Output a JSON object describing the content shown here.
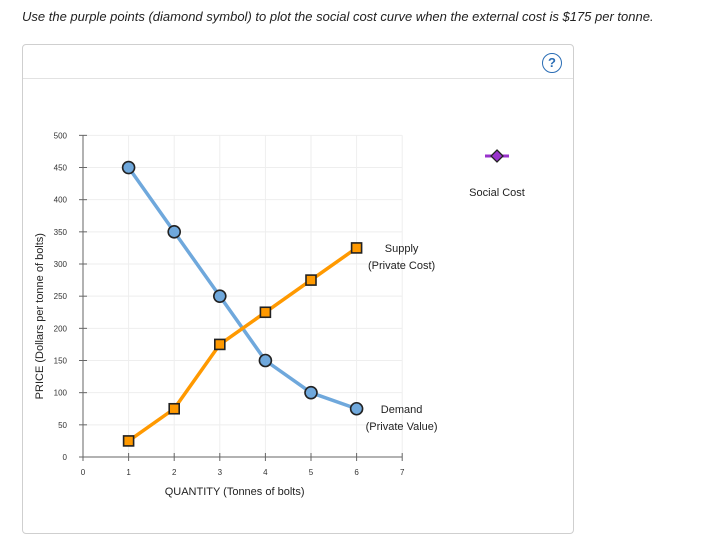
{
  "instruction": "Use the purple points (diamond symbol) to plot the social cost curve when the external cost is $175 per tonne.",
  "help_label": "?",
  "colors": {
    "demand": "#6fa8dc",
    "supply": "#ff9900",
    "social": "#9933cc",
    "marker_fill_demand": "#6fa8dc",
    "marker_fill_supply": "#ff9900"
  },
  "chart_data": {
    "type": "line",
    "xlabel": "QUANTITY (Tonnes of bolts)",
    "ylabel": "PRICE (Dollars per tonne of bolts)",
    "xlim": [
      0,
      7
    ],
    "ylim": [
      0,
      500
    ],
    "xticks": [
      0,
      1,
      2,
      3,
      4,
      5,
      6,
      7
    ],
    "yticks": [
      0,
      50,
      100,
      150,
      200,
      250,
      300,
      350,
      400,
      450,
      500
    ],
    "grid": true,
    "series": [
      {
        "name": "Demand",
        "label_lines": [
          "Demand",
          "(Private Value)"
        ],
        "marker": "circle",
        "x": [
          1,
          2,
          3,
          4,
          5,
          6
        ],
        "y": [
          450,
          350,
          250,
          150,
          100,
          75
        ]
      },
      {
        "name": "Supply",
        "label_lines": [
          "Supply",
          "(Private Cost)"
        ],
        "marker": "square",
        "x": [
          1,
          2,
          3,
          4,
          5,
          6
        ],
        "y": [
          25,
          75,
          175,
          225,
          275,
          325
        ]
      }
    ],
    "palette": {
      "name": "Social Cost",
      "marker": "diamond"
    }
  }
}
